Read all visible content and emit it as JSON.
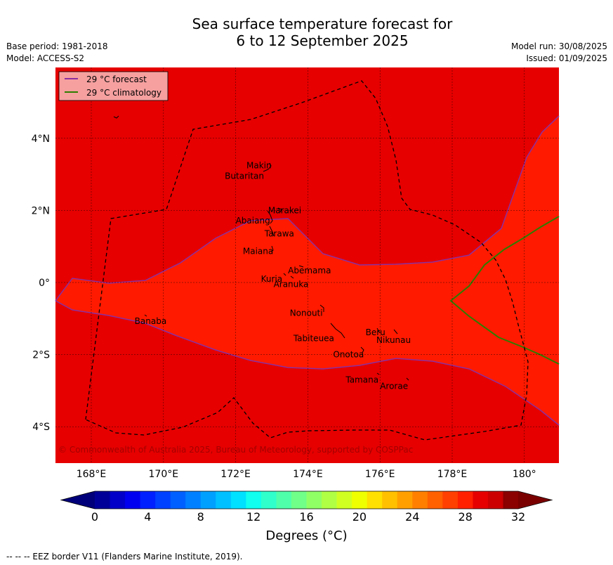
{
  "title_line1": "Sea surface temperature forecast for",
  "title_line2": "6 to 12 September 2025",
  "meta": {
    "base_period": "Base period: 1981-2018",
    "model": "Model: ACCESS-S2",
    "model_run": "Model run: 30/08/2025",
    "issued": "Issued: 01/09/2025"
  },
  "legend": {
    "forecast_label": "29 °C  forecast",
    "forecast_color": "#8b2fa0",
    "climatology_label": "29 °C  climatology",
    "climatology_color": "#2e7d00"
  },
  "colors": {
    "warm_region": "#e60000",
    "warmer_region": "#ff1a00",
    "eez": "#000000"
  },
  "copyright": "© Commonwealth of Australia 2025, Bureau of Meteorology, supported by COSPPac",
  "axes": {
    "x_ticks": [
      {
        "lon": 168,
        "label": "168°E"
      },
      {
        "lon": 170,
        "label": "170°E"
      },
      {
        "lon": 172,
        "label": "172°E"
      },
      {
        "lon": 174,
        "label": "174°E"
      },
      {
        "lon": 176,
        "label": "176°E"
      },
      {
        "lon": 178,
        "label": "178°E"
      },
      {
        "lon": 180,
        "label": "180°"
      }
    ],
    "y_ticks": [
      {
        "lat": 4,
        "label": "4°N"
      },
      {
        "lat": 2,
        "label": "2°N"
      },
      {
        "lat": 0,
        "label": "0°"
      },
      {
        "lat": -2,
        "label": "2°S"
      },
      {
        "lat": -4,
        "label": "4°S"
      }
    ],
    "lon_range": [
      167,
      181
    ],
    "lat_range": [
      -5,
      6
    ]
  },
  "places": [
    {
      "name": "Makin",
      "lon": 172.3,
      "lat": 3.25
    },
    {
      "name": "Butaritan",
      "lon": 171.7,
      "lat": 2.95
    },
    {
      "name": "Marakei",
      "lon": 172.9,
      "lat": 2.0
    },
    {
      "name": "Abaiang",
      "lon": 172.0,
      "lat": 1.72
    },
    {
      "name": "Tarawa",
      "lon": 172.8,
      "lat": 1.35
    },
    {
      "name": "Maiana",
      "lon": 172.2,
      "lat": 0.87
    },
    {
      "name": "Abemama",
      "lon": 173.45,
      "lat": 0.33
    },
    {
      "name": "Kuria",
      "lon": 172.7,
      "lat": 0.1
    },
    {
      "name": "Aranuka",
      "lon": 173.05,
      "lat": -0.05
    },
    {
      "name": "Nonouti",
      "lon": 173.5,
      "lat": -0.85
    },
    {
      "name": "Banaba",
      "lon": 169.2,
      "lat": -1.07
    },
    {
      "name": "Tabiteuea",
      "lon": 173.6,
      "lat": -1.55
    },
    {
      "name": "Beru",
      "lon": 175.6,
      "lat": -1.38
    },
    {
      "name": "Nikunau",
      "lon": 175.9,
      "lat": -1.6
    },
    {
      "name": "Onotoa",
      "lon": 174.7,
      "lat": -2.0
    },
    {
      "name": "Tamana",
      "lon": 175.05,
      "lat": -2.7
    },
    {
      "name": "Arorae",
      "lon": 176.0,
      "lat": -2.88
    }
  ],
  "colorbar": {
    "ticks": [
      "0",
      "4",
      "8",
      "12",
      "16",
      "20",
      "24",
      "28",
      "32"
    ],
    "min": 0,
    "max": 32,
    "step": 1,
    "label": "Degrees ($^\\circ$C)",
    "label_display": "Degrees (°C)"
  },
  "footer": "--  --  -- EEZ border V11 (Flanders Marine Institute, 2019)."
}
